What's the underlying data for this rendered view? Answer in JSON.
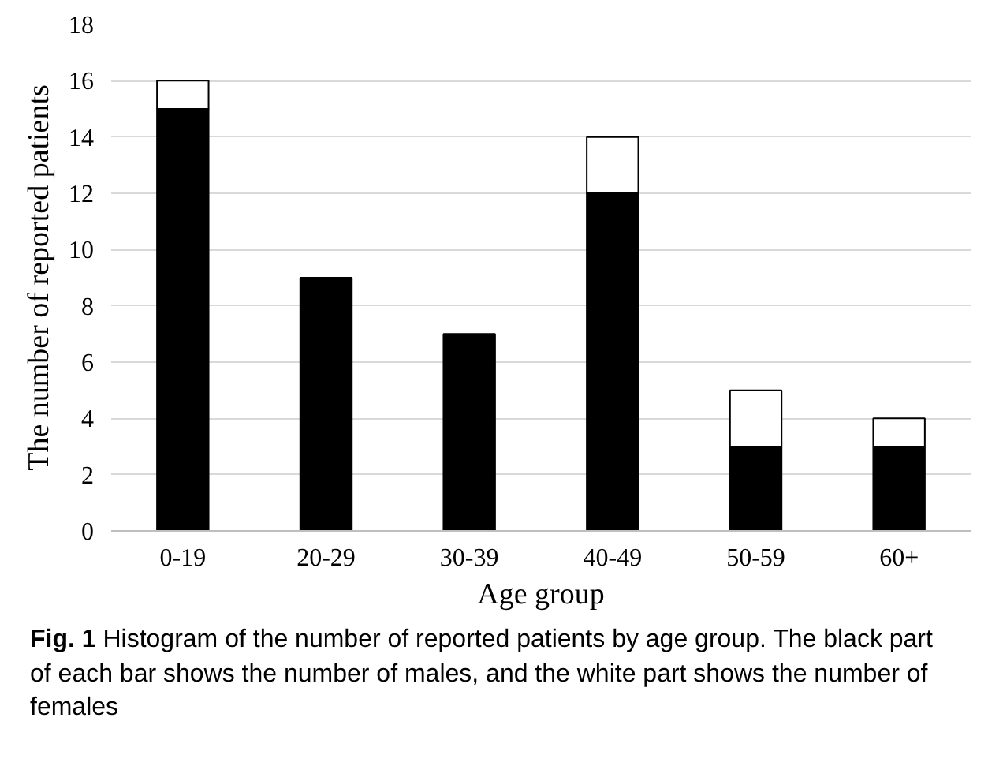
{
  "chart_data": {
    "type": "bar",
    "stacked": true,
    "xlabel": "Age group",
    "ylabel": "The number of reported patients",
    "categories": [
      "0-19",
      "20-29",
      "30-39",
      "40-49",
      "50-59",
      "60+"
    ],
    "series": [
      {
        "color": "#000000",
        "values": [
          15,
          9,
          7,
          12,
          3,
          3
        ]
      },
      {
        "color": "#ffffff",
        "values": [
          1,
          0,
          0,
          2,
          2,
          1
        ]
      }
    ],
    "ylim": [
      0,
      18
    ],
    "yticks": [
      0,
      2,
      4,
      6,
      8,
      10,
      12,
      14,
      16,
      18
    ],
    "grid": "y",
    "annotations": [
      "Fig. 1 Histogram of the number of reported patients by age group. The black part of each bar shows the number of males, and the white part shows the number of females"
    ]
  }
}
